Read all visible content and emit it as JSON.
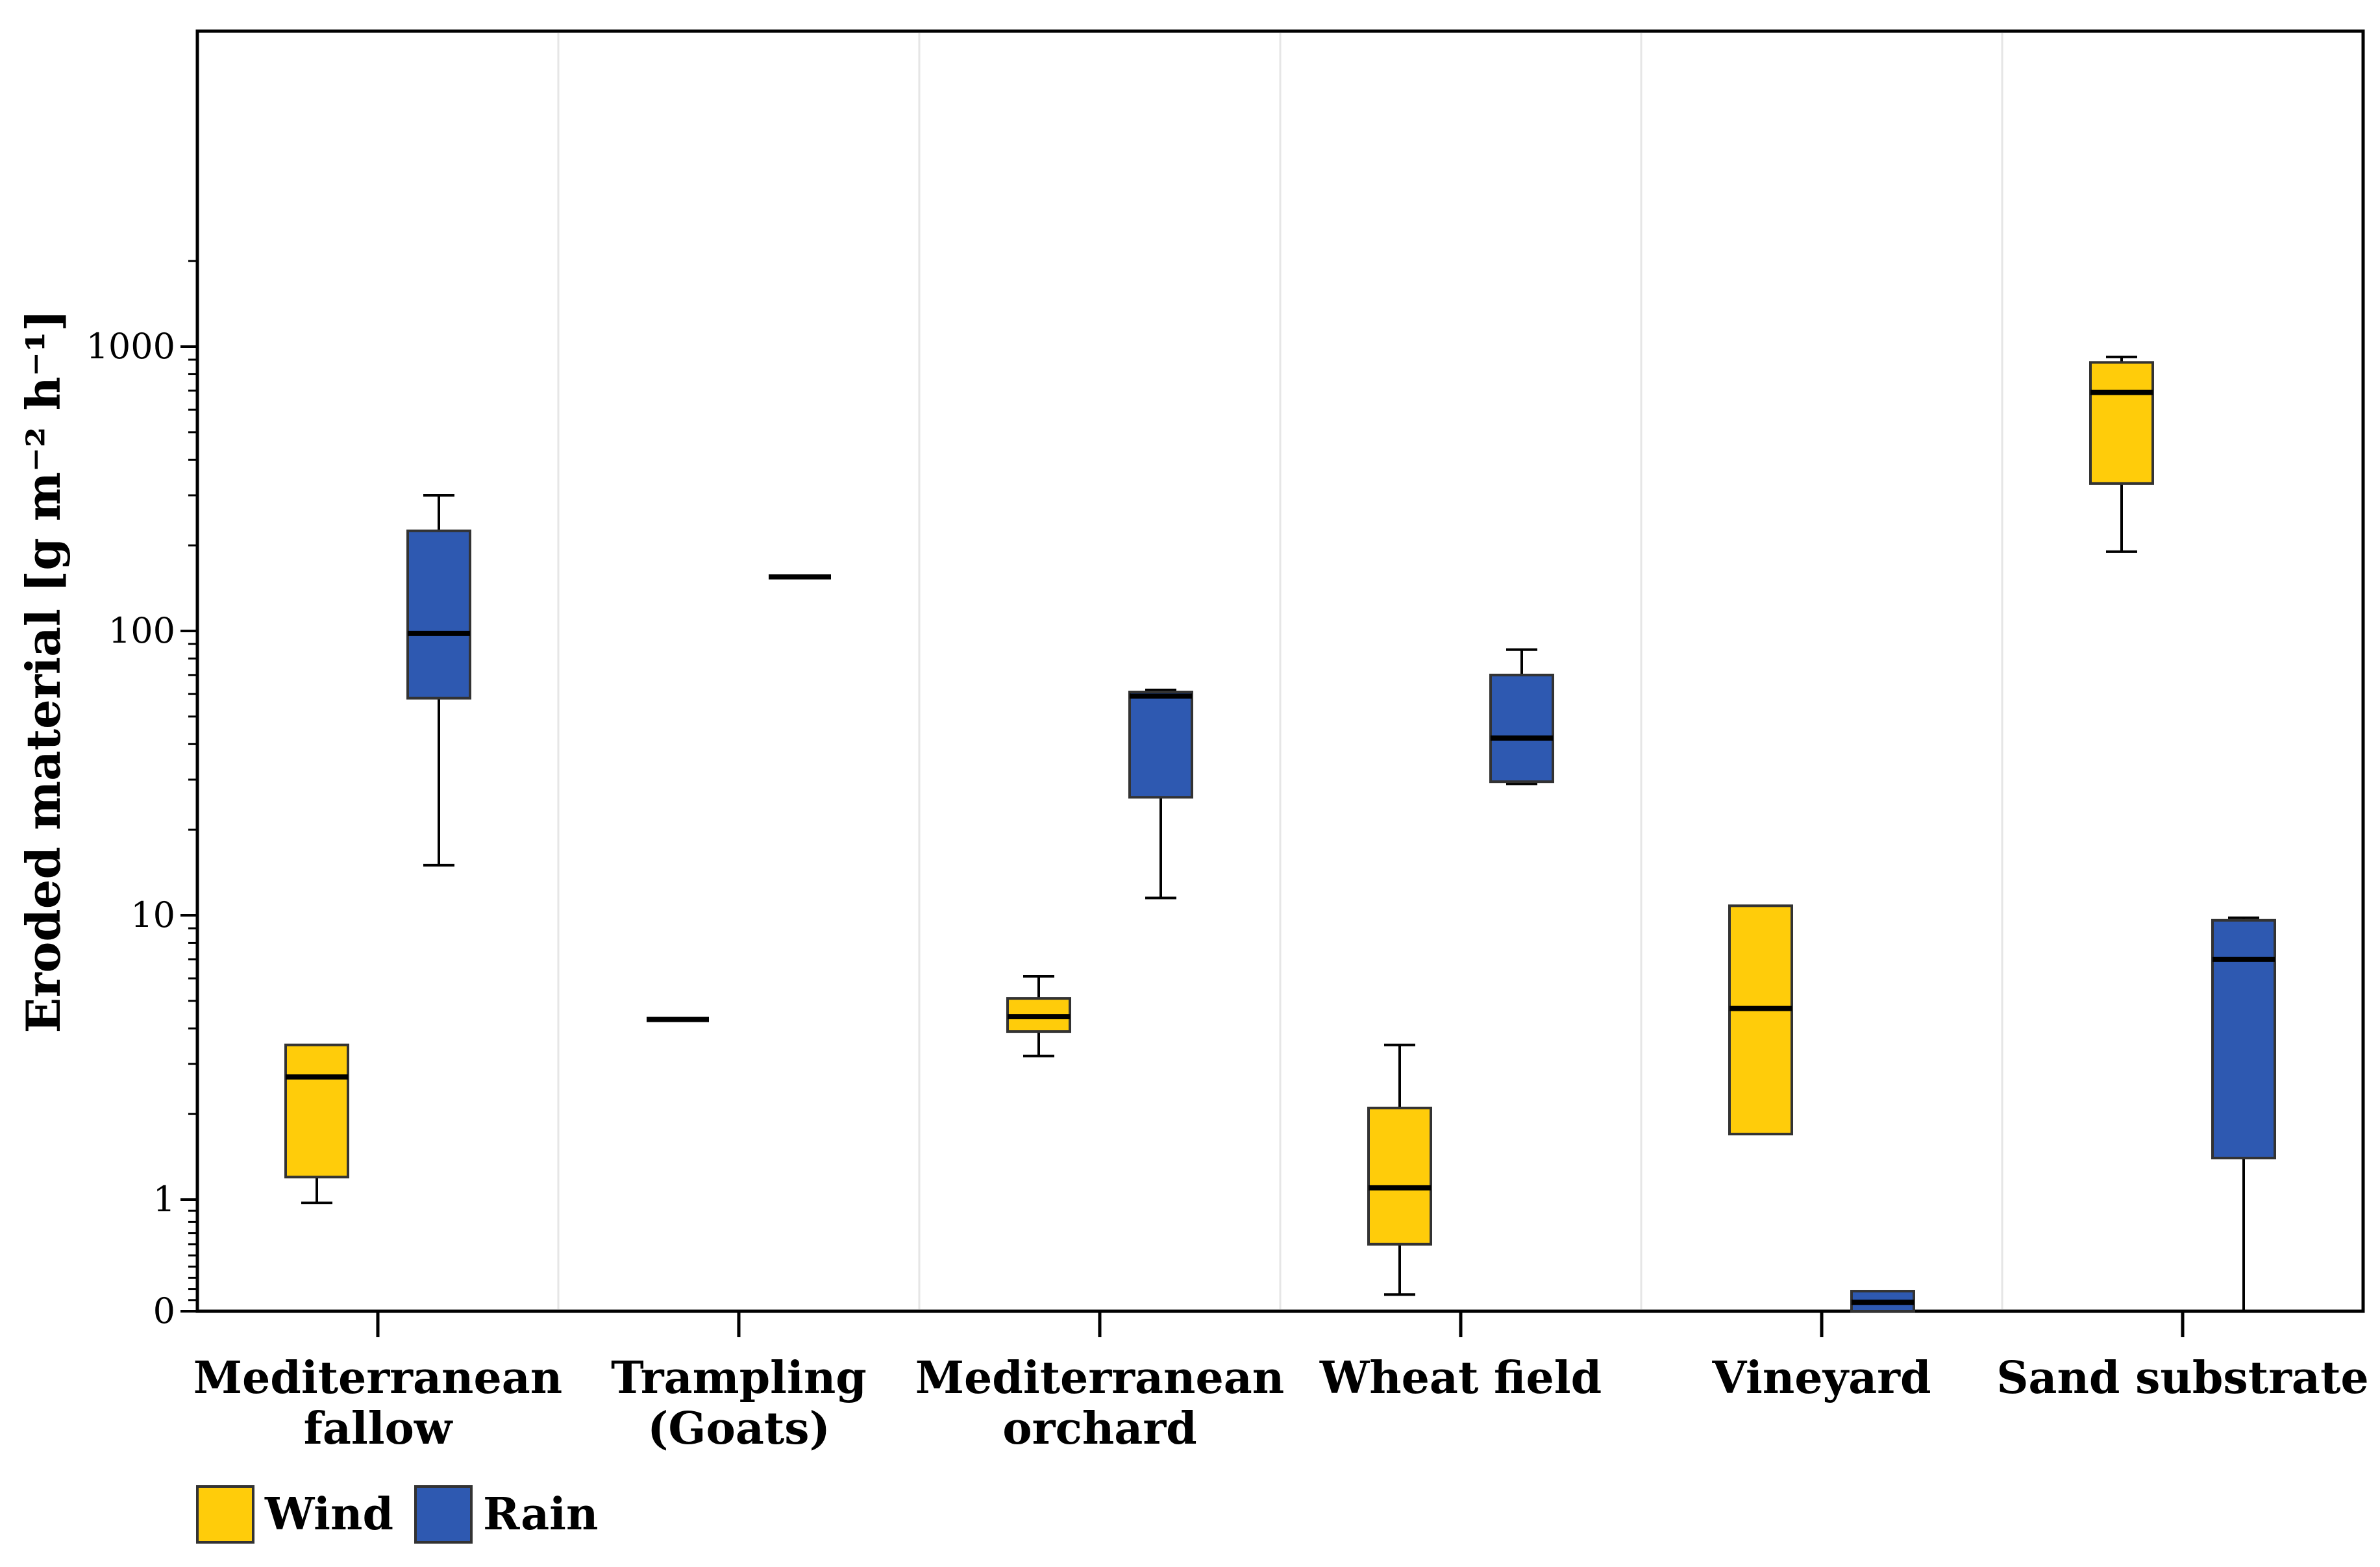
{
  "chart_data": {
    "type": "box",
    "ylabel": "Eroded material [g m⁻² h⁻¹]",
    "yscale": "log",
    "ylim": [
      0,
      2000
    ],
    "yticks": [
      0,
      1,
      10,
      100,
      1000
    ],
    "ytick_labels": [
      "0",
      "1",
      "10",
      "100",
      "1000"
    ],
    "grid": false,
    "legend_position": "bottom-left",
    "categories": [
      {
        "line1": "Mediterranean",
        "line2": "fallow"
      },
      {
        "line1": "Trampling",
        "line2": "(Goats)"
      },
      {
        "line1": "Mediterranean",
        "line2": "orchard"
      },
      {
        "line1": "Wheat field",
        "line2": ""
      },
      {
        "line1": "Vineyard",
        "line2": ""
      },
      {
        "line1": "Sand substrate",
        "line2": ""
      }
    ],
    "series": [
      {
        "name": "Wind",
        "color": "#FFCC0A",
        "boxes": [
          {
            "min": 0.97,
            "q1": 1.2,
            "median": 2.7,
            "q3": 3.5,
            "max": 3.5
          },
          {
            "min": 4.3,
            "q1": 4.3,
            "median": 4.3,
            "q3": 4.3,
            "max": 4.3
          },
          {
            "min": 3.2,
            "q1": 3.9,
            "median": 4.4,
            "q3": 5.1,
            "max": 6.1
          },
          {
            "min": 0.15,
            "q1": 0.6,
            "median": 1.1,
            "q3": 2.1,
            "max": 3.5
          },
          {
            "min": 1.7,
            "q1": 1.7,
            "median": 4.7,
            "q3": 10.8,
            "max": 10.8
          },
          {
            "min": 190,
            "q1": 330,
            "median": 690,
            "q3": 880,
            "max": 920
          }
        ]
      },
      {
        "name": "Rain",
        "color": "#2E59B1",
        "boxes": [
          {
            "min": 15,
            "q1": 58,
            "median": 98,
            "q3": 225,
            "max": 300
          },
          {
            "min": 155,
            "q1": 155,
            "median": 155,
            "q3": 155,
            "max": 155
          },
          {
            "min": 11.5,
            "q1": 26,
            "median": 59,
            "q3": 61,
            "max": 62
          },
          {
            "min": 29,
            "q1": 29.5,
            "median": 42,
            "q3": 70,
            "max": 86
          },
          {
            "min": 0,
            "q1": 0,
            "median": 0.08,
            "q3": 0.18,
            "max": 0.18
          },
          {
            "min": 0,
            "q1": 1.4,
            "median": 7,
            "q3": 9.6,
            "max": 9.8
          }
        ]
      }
    ]
  }
}
